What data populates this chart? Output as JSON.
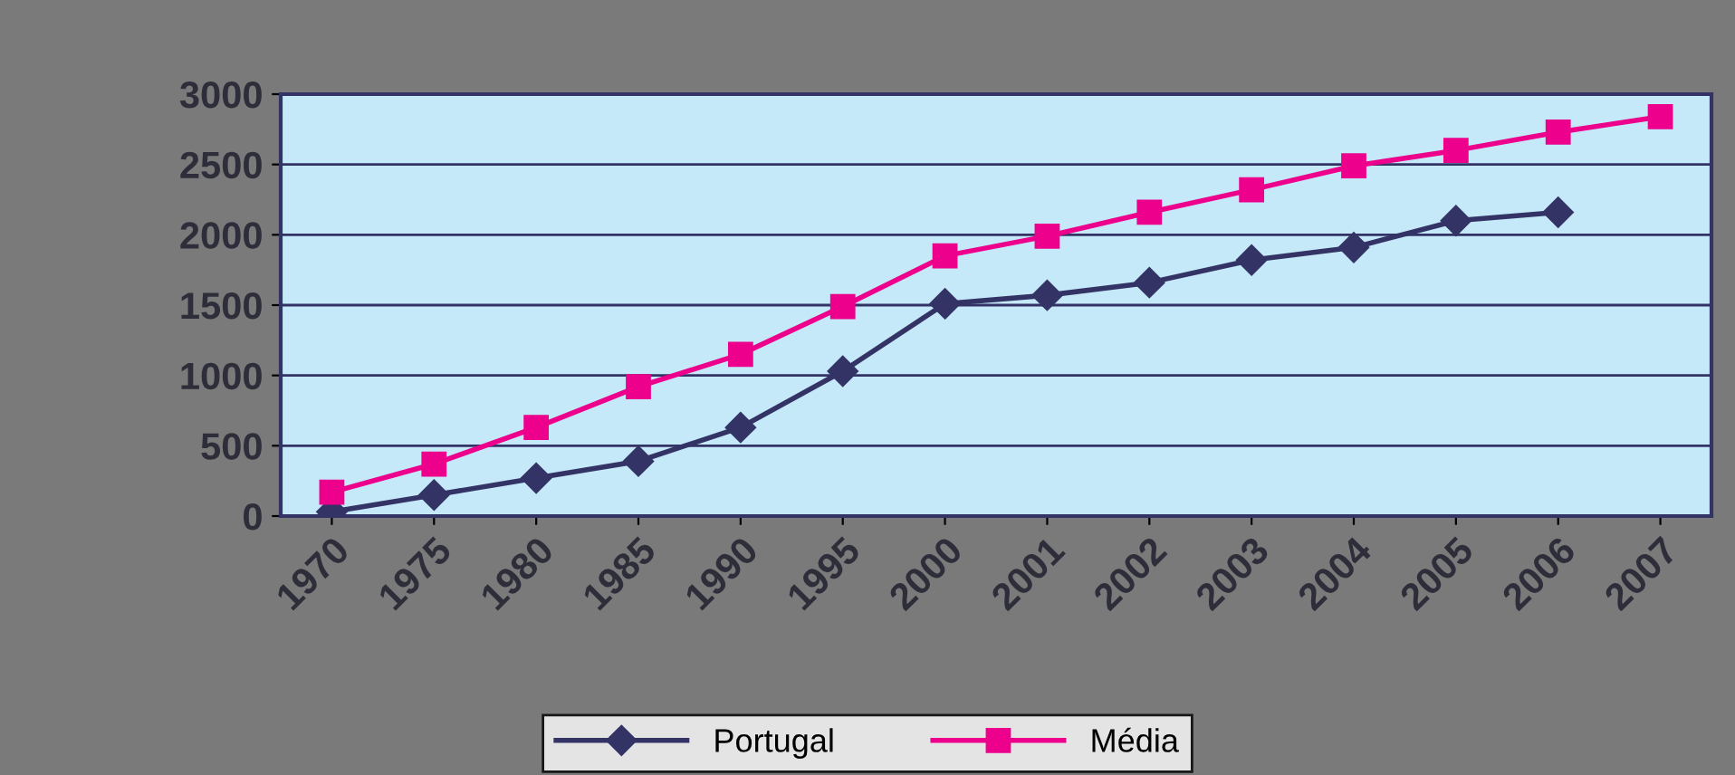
{
  "chart_data": {
    "type": "line",
    "categories": [
      "1970",
      "1975",
      "1980",
      "1985",
      "1990",
      "1995",
      "2000",
      "2001",
      "2002",
      "2003",
      "2004",
      "2005",
      "2006",
      "2007"
    ],
    "series": [
      {
        "name": "Portugal",
        "color": "#333366",
        "marker": "diamond",
        "values": [
          30,
          150,
          270,
          390,
          630,
          1030,
          1510,
          1570,
          1660,
          1820,
          1910,
          2100,
          2160,
          null
        ]
      },
      {
        "name": "Média",
        "color": "#ec008c",
        "marker": "square",
        "values": [
          170,
          370,
          630,
          920,
          1150,
          1490,
          1850,
          1990,
          2160,
          2320,
          2490,
          2600,
          2730,
          2840
        ]
      }
    ],
    "ylim": [
      0,
      3000
    ],
    "yticks": [
      0,
      500,
      1000,
      1500,
      2000,
      2500,
      3000
    ],
    "grid": "y",
    "legend": "bottom",
    "line_style": "solid"
  }
}
